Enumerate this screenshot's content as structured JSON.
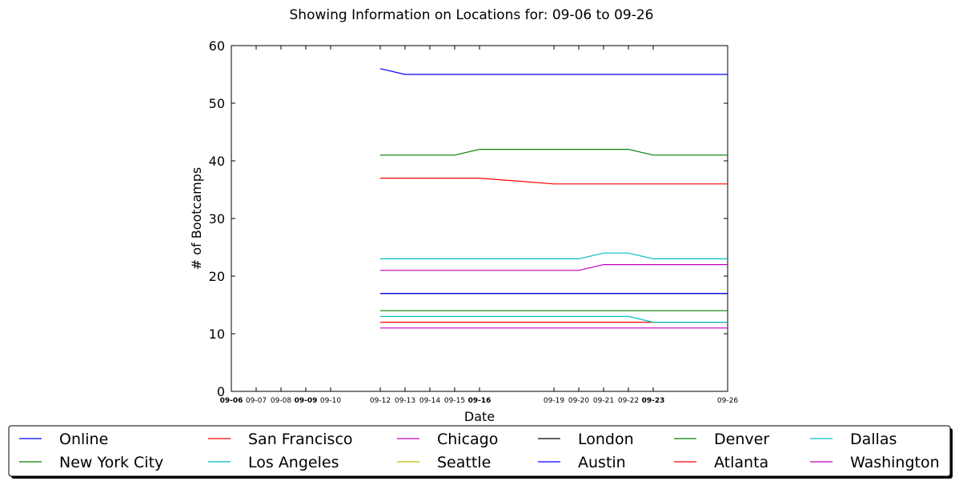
{
  "chart_data": {
    "type": "line",
    "title": "Showing Information on Locations for: 09-06 to 09-26",
    "xlabel": "Date",
    "ylabel": "# of Bootcamps",
    "ylim": [
      0,
      60
    ],
    "yticks": [
      0,
      10,
      20,
      30,
      40,
      50,
      60
    ],
    "x_range_days": [
      6,
      26
    ],
    "x_ticks": [
      {
        "label": "09-06",
        "day": 6,
        "bold": true
      },
      {
        "label": "09-07",
        "day": 7,
        "bold": false
      },
      {
        "label": "09-08",
        "day": 8,
        "bold": false
      },
      {
        "label": "09-09",
        "day": 9,
        "bold": true
      },
      {
        "label": "09-10",
        "day": 10,
        "bold": false
      },
      {
        "label": "09-12",
        "day": 12,
        "bold": false
      },
      {
        "label": "09-13",
        "day": 13,
        "bold": false
      },
      {
        "label": "09-14",
        "day": 14,
        "bold": false
      },
      {
        "label": "09-15",
        "day": 15,
        "bold": false
      },
      {
        "label": "09-16",
        "day": 16,
        "bold": true
      },
      {
        "label": "09-19",
        "day": 19,
        "bold": false
      },
      {
        "label": "09-20",
        "day": 20,
        "bold": false
      },
      {
        "label": "09-21",
        "day": 21,
        "bold": false
      },
      {
        "label": "09-22",
        "day": 22,
        "bold": false
      },
      {
        "label": "09-23",
        "day": 23,
        "bold": true
      },
      {
        "label": "09-26",
        "day": 26,
        "bold": false
      }
    ],
    "series": [
      {
        "name": "Online",
        "color": "#0000ff",
        "points": [
          [
            12,
            56
          ],
          [
            13,
            55
          ],
          [
            26,
            55
          ]
        ]
      },
      {
        "name": "New York City",
        "color": "#008000",
        "points": [
          [
            12,
            41
          ],
          [
            15,
            41
          ],
          [
            16,
            42
          ],
          [
            22,
            42
          ],
          [
            23,
            41
          ],
          [
            26,
            41
          ]
        ]
      },
      {
        "name": "San Francisco",
        "color": "#ff0000",
        "points": [
          [
            12,
            37
          ],
          [
            16,
            37
          ],
          [
            19,
            36
          ],
          [
            26,
            36
          ]
        ]
      },
      {
        "name": "Los Angeles",
        "color": "#00bfbf",
        "points": [
          [
            12,
            23
          ],
          [
            20,
            23
          ],
          [
            21,
            24
          ],
          [
            22,
            24
          ],
          [
            23,
            23
          ],
          [
            26,
            23
          ]
        ]
      },
      {
        "name": "Chicago",
        "color": "#bf00bf",
        "points": [
          [
            12,
            21
          ],
          [
            20,
            21
          ],
          [
            21,
            22
          ],
          [
            26,
            22
          ]
        ]
      },
      {
        "name": "Seattle",
        "color": "#bfbf00",
        "points": [
          [
            12,
            17
          ],
          [
            26,
            17
          ]
        ]
      },
      {
        "name": "London",
        "color": "#000000",
        "points": [
          [
            12,
            17
          ],
          [
            26,
            17
          ]
        ]
      },
      {
        "name": "Austin",
        "color": "#0000ff",
        "points": [
          [
            12,
            17
          ],
          [
            26,
            17
          ]
        ]
      },
      {
        "name": "Denver",
        "color": "#008000",
        "points": [
          [
            12,
            14
          ],
          [
            26,
            14
          ]
        ]
      },
      {
        "name": "Atlanta",
        "color": "#ff0000",
        "points": [
          [
            12,
            12
          ],
          [
            26,
            12
          ]
        ]
      },
      {
        "name": "Dallas",
        "color": "#00bfbf",
        "points": [
          [
            12,
            13
          ],
          [
            22,
            13
          ],
          [
            23,
            12
          ],
          [
            26,
            12
          ]
        ]
      },
      {
        "name": "Washington",
        "color": "#bf00bf",
        "points": [
          [
            12,
            11
          ],
          [
            26,
            11
          ]
        ]
      }
    ],
    "legend": {
      "placement": "bottom",
      "columns": 6,
      "order": [
        "Online",
        "New York City",
        "San Francisco",
        "Los Angeles",
        "Chicago",
        "Seattle",
        "London",
        "Austin",
        "Denver",
        "Atlanta",
        "Dallas",
        "Washington"
      ]
    }
  }
}
